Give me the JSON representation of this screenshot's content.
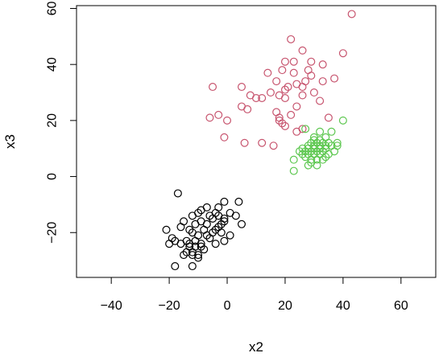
{
  "chart_data": {
    "type": "scatter",
    "xlabel": "x2",
    "ylabel": "x3",
    "xlim": [
      -52,
      72
    ],
    "ylim": [
      -36,
      61
    ],
    "x_ticks": [
      -40,
      -20,
      0,
      20,
      40,
      60
    ],
    "y_ticks": [
      -20,
      0,
      20,
      40,
      60
    ],
    "grid": false,
    "legend": "none",
    "series": [
      {
        "color": "#000000",
        "points": [
          [
            -17,
            -6
          ],
          [
            4,
            -9
          ],
          [
            -1,
            -9
          ],
          [
            -21,
            -19
          ],
          [
            -16,
            -18
          ],
          [
            -12,
            -14
          ],
          [
            -10,
            -13
          ],
          [
            -9,
            -16
          ],
          [
            -7,
            -11
          ],
          [
            -6,
            -14
          ],
          [
            -4,
            -13
          ],
          [
            -3,
            -14
          ],
          [
            -1,
            -15
          ],
          [
            1,
            -13
          ],
          [
            3,
            -14
          ],
          [
            5,
            -17
          ],
          [
            -3,
            -18
          ],
          [
            -5,
            -20
          ],
          [
            -8,
            -19
          ],
          [
            -10,
            -21
          ],
          [
            -12,
            -20
          ],
          [
            -14,
            -23
          ],
          [
            -16,
            -24
          ],
          [
            -18,
            -23
          ],
          [
            -19,
            -22
          ],
          [
            -20,
            -24
          ],
          [
            -13,
            -25
          ],
          [
            -11,
            -25
          ],
          [
            -9,
            -24
          ],
          [
            -8,
            -26
          ],
          [
            -10,
            -28
          ],
          [
            -12,
            -27
          ],
          [
            -14,
            -27
          ],
          [
            -15,
            -28
          ],
          [
            -18,
            -32
          ],
          [
            -12,
            -32
          ],
          [
            -10,
            -29
          ],
          [
            -4,
            -24
          ],
          [
            -1,
            -23
          ],
          [
            1,
            -21
          ],
          [
            -2,
            -20
          ],
          [
            -6,
            -22
          ],
          [
            -7,
            -17
          ],
          [
            -11,
            -17
          ],
          [
            -13,
            -19
          ],
          [
            -15,
            -16
          ],
          [
            -9,
            -12
          ],
          [
            -5,
            -15
          ],
          [
            -3,
            -11
          ],
          [
            -1,
            -16
          ],
          [
            -11,
            -23
          ],
          [
            -13,
            -24
          ],
          [
            -12,
            -28
          ],
          [
            -9,
            -25
          ],
          [
            -7,
            -21
          ],
          [
            -4,
            -19
          ],
          [
            -2,
            -17
          ]
        ]
      },
      {
        "color": "#C7546E",
        "points": [
          [
            43,
            58
          ],
          [
            22,
            49
          ],
          [
            26,
            45
          ],
          [
            20,
            41
          ],
          [
            23,
            41
          ],
          [
            29,
            41
          ],
          [
            33,
            40
          ],
          [
            40,
            44
          ],
          [
            14,
            37
          ],
          [
            19,
            38
          ],
          [
            23,
            37
          ],
          [
            28,
            38
          ],
          [
            33,
            34
          ],
          [
            24,
            33
          ],
          [
            27,
            34
          ],
          [
            21,
            32
          ],
          [
            17,
            34
          ],
          [
            18,
            29
          ],
          [
            20,
            28
          ],
          [
            15,
            30
          ],
          [
            10,
            28
          ],
          [
            12,
            28
          ],
          [
            8,
            29
          ],
          [
            5,
            32
          ],
          [
            -5,
            32
          ],
          [
            5,
            25
          ],
          [
            7,
            24
          ],
          [
            -3,
            22
          ],
          [
            -6,
            21
          ],
          [
            0,
            20
          ],
          [
            17,
            23
          ],
          [
            18,
            21
          ],
          [
            18,
            20
          ],
          [
            19,
            19
          ],
          [
            20,
            18
          ],
          [
            22,
            22
          ],
          [
            24,
            25
          ],
          [
            26,
            29
          ],
          [
            30,
            30
          ],
          [
            32,
            27
          ],
          [
            37,
            35
          ],
          [
            35,
            21
          ],
          [
            26,
            17
          ],
          [
            24,
            16
          ],
          [
            -1,
            14
          ],
          [
            6,
            12
          ],
          [
            12,
            12
          ],
          [
            16,
            11
          ],
          [
            20,
            31
          ],
          [
            29,
            36
          ],
          [
            26,
            32
          ]
        ]
      },
      {
        "color": "#5CC74F",
        "points": [
          [
            27,
            17
          ],
          [
            32,
            16
          ],
          [
            36,
            16
          ],
          [
            40,
            20
          ],
          [
            30,
            14
          ],
          [
            29,
            12
          ],
          [
            31,
            12
          ],
          [
            33,
            12
          ],
          [
            35,
            12
          ],
          [
            28,
            11
          ],
          [
            30,
            11
          ],
          [
            32,
            11
          ],
          [
            34,
            11
          ],
          [
            36,
            11
          ],
          [
            38,
            11
          ],
          [
            26,
            10
          ],
          [
            28,
            10
          ],
          [
            30,
            10
          ],
          [
            32,
            10
          ],
          [
            34,
            10
          ],
          [
            37,
            9
          ],
          [
            25,
            9
          ],
          [
            27,
            9
          ],
          [
            29,
            9
          ],
          [
            31,
            9
          ],
          [
            33,
            9
          ],
          [
            35,
            8
          ],
          [
            26,
            8
          ],
          [
            28,
            8
          ],
          [
            30,
            8
          ],
          [
            32,
            8
          ],
          [
            34,
            7
          ],
          [
            27,
            7
          ],
          [
            29,
            6
          ],
          [
            31,
            6
          ],
          [
            33,
            6
          ],
          [
            23,
            6
          ],
          [
            29,
            5
          ],
          [
            31,
            4
          ],
          [
            28,
            4
          ],
          [
            23,
            2
          ],
          [
            38,
            12
          ],
          [
            30,
            13
          ],
          [
            32,
            13
          ],
          [
            34,
            14
          ]
        ]
      }
    ]
  }
}
